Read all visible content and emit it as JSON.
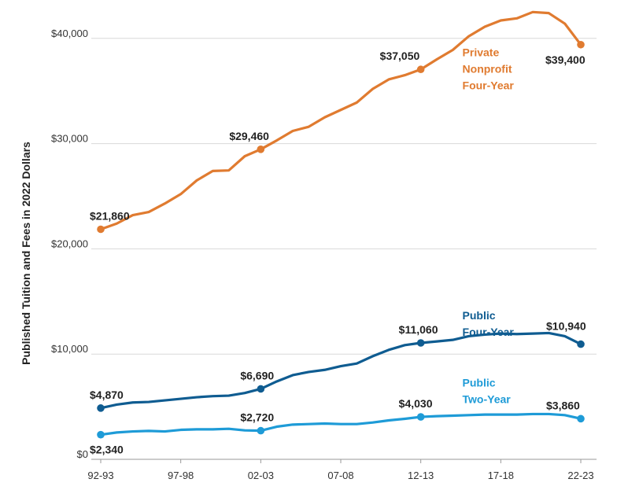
{
  "chart_data": {
    "type": "line",
    "ylabel": "Published Tuition and Fees in 2022 Dollars",
    "xlabel": "",
    "ylim": [
      0,
      42000
    ],
    "yticks": [
      0,
      10000,
      20000,
      30000,
      40000
    ],
    "ytick_labels": [
      "$0",
      "$10,000",
      "$20,000",
      "$30,000",
      "$40,000"
    ],
    "x": [
      "92-93",
      "93-94",
      "94-95",
      "95-96",
      "96-97",
      "97-98",
      "98-99",
      "99-00",
      "00-01",
      "01-02",
      "02-03",
      "03-04",
      "04-05",
      "05-06",
      "06-07",
      "07-08",
      "08-09",
      "09-10",
      "10-11",
      "11-12",
      "12-13",
      "13-14",
      "14-15",
      "15-16",
      "16-17",
      "17-18",
      "18-19",
      "19-20",
      "20-21",
      "21-22",
      "22-23"
    ],
    "xtick_labels": [
      "92-93",
      "97-98",
      "02-03",
      "07-08",
      "12-13",
      "17-18",
      "22-23"
    ],
    "grid": "horizontal",
    "series": [
      {
        "name": "Private Nonprofit Four-Year",
        "label_lines": [
          "Private",
          "Nonprofit",
          "Four-Year"
        ],
        "color": "#e07b30",
        "values": [
          21860,
          22400,
          23200,
          23500,
          24300,
          25200,
          26500,
          27400,
          27450,
          28800,
          29460,
          30300,
          31200,
          31600,
          32500,
          33200,
          33900,
          35200,
          36100,
          36500,
          37050,
          38000,
          38900,
          40200,
          41100,
          41700,
          41900,
          42500,
          42400,
          41400,
          39400
        ],
        "labeled_points": [
          {
            "x": "92-93",
            "label": "$21,860"
          },
          {
            "x": "02-03",
            "label": "$29,460"
          },
          {
            "x": "12-13",
            "label": "$37,050"
          },
          {
            "x": "22-23",
            "label": "$39,400"
          }
        ]
      },
      {
        "name": "Public Four-Year",
        "label_lines": [
          "Public",
          "Four-Year"
        ],
        "color": "#0f5c91",
        "values": [
          4870,
          5200,
          5400,
          5450,
          5600,
          5750,
          5900,
          6000,
          6050,
          6300,
          6690,
          7400,
          8000,
          8300,
          8500,
          8850,
          9100,
          9800,
          10400,
          10850,
          11060,
          11200,
          11350,
          11700,
          11850,
          11950,
          11900,
          11950,
          12000,
          11700,
          10940
        ],
        "labeled_points": [
          {
            "x": "92-93",
            "label": "$4,870"
          },
          {
            "x": "02-03",
            "label": "$6,690"
          },
          {
            "x": "12-13",
            "label": "$11,060"
          },
          {
            "x": "22-23",
            "label": "$10,940"
          }
        ]
      },
      {
        "name": "Public Two-Year",
        "label_lines": [
          "Public",
          "Two-Year"
        ],
        "color": "#1e9bd7",
        "values": [
          2340,
          2550,
          2650,
          2700,
          2650,
          2800,
          2850,
          2850,
          2900,
          2750,
          2720,
          3100,
          3300,
          3350,
          3400,
          3350,
          3350,
          3500,
          3700,
          3850,
          4030,
          4100,
          4150,
          4200,
          4250,
          4250,
          4250,
          4300,
          4300,
          4200,
          3860
        ],
        "labeled_points": [
          {
            "x": "92-93",
            "label": "$2,340"
          },
          {
            "x": "02-03",
            "label": "$2,720"
          },
          {
            "x": "12-13",
            "label": "$4,030"
          },
          {
            "x": "22-23",
            "label": "$3,860"
          }
        ]
      }
    ]
  }
}
